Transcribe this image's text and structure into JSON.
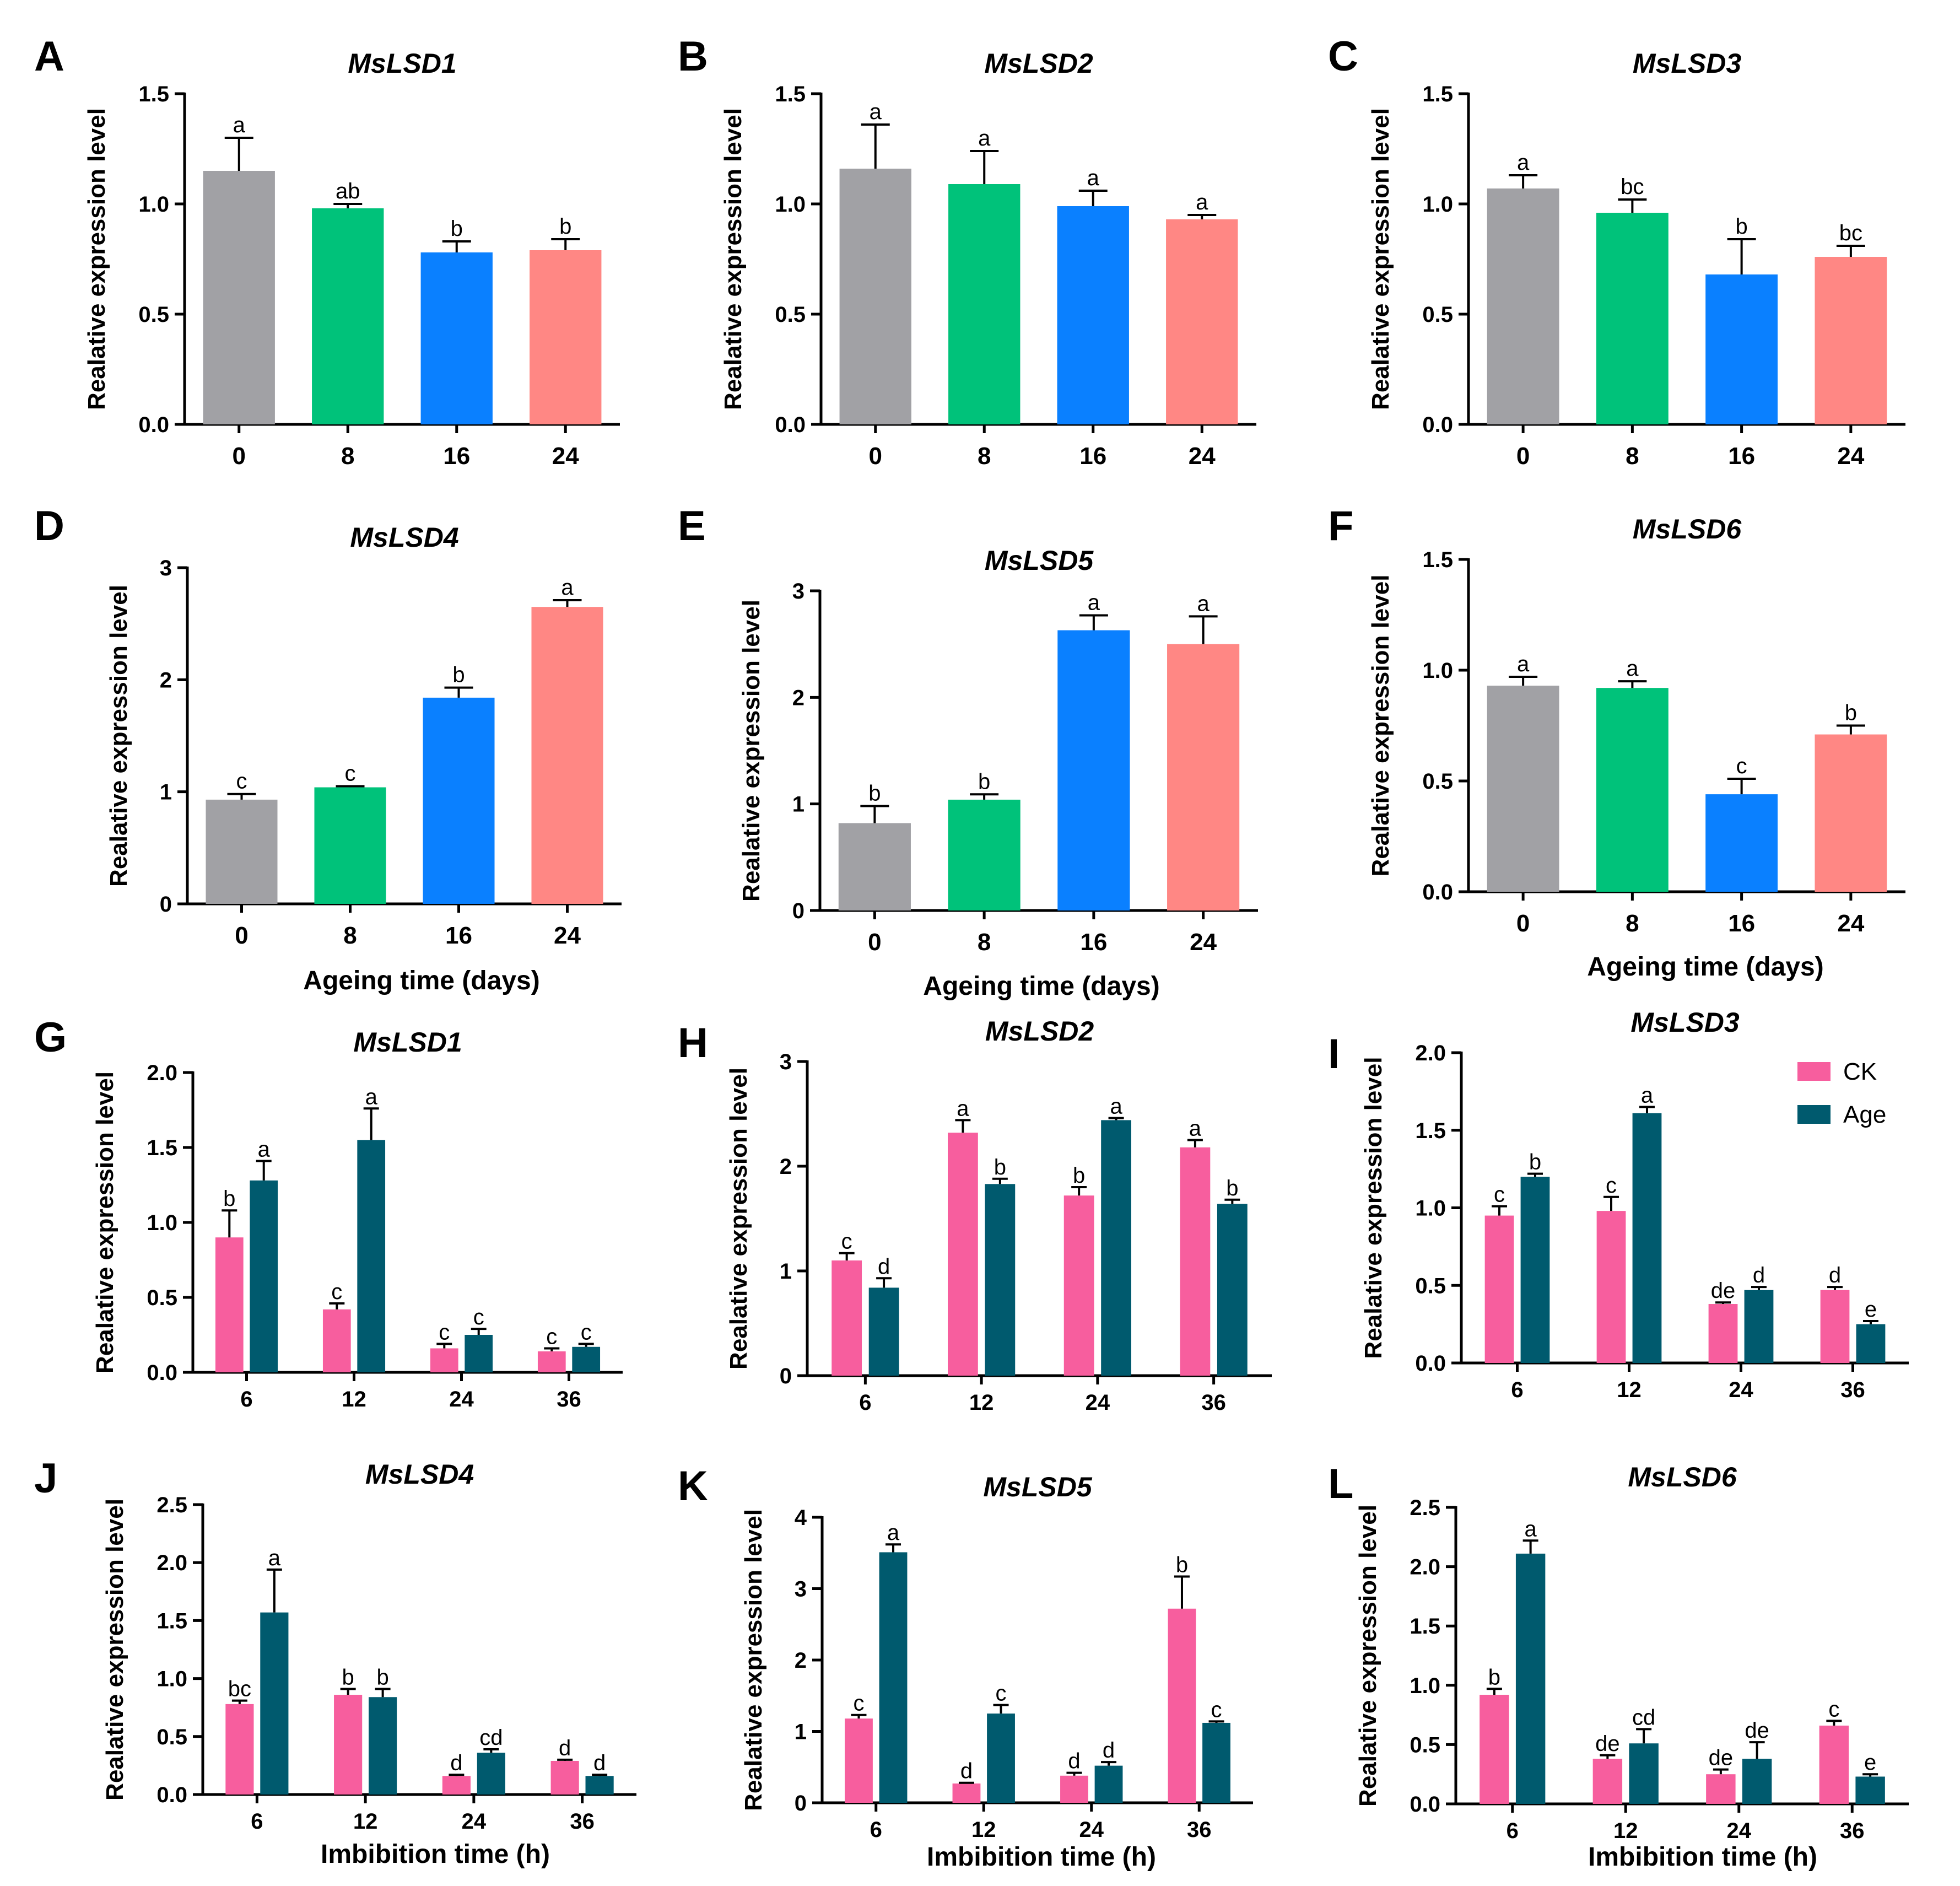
{
  "colors": {
    "age_0": "#a1a1a5",
    "age_8": "#00c27a",
    "age_16": "#0a80ff",
    "age_24": "#ff8784",
    "ck": "#f75e9e",
    "age": "#005a6e"
  },
  "legend": {
    "ck_label": "CK",
    "age_label": "Age"
  },
  "chart_data": [
    {
      "id": "A",
      "type": "bar",
      "title": "MsLSD1",
      "ylabel": "Realative expression level",
      "xlabel": "",
      "categories": [
        "0",
        "8",
        "16",
        "24"
      ],
      "values": [
        1.15,
        0.98,
        0.78,
        0.79
      ],
      "errors": [
        0.15,
        0.02,
        0.05,
        0.05
      ],
      "letters": [
        "a",
        "ab",
        "b",
        "b"
      ],
      "ylim": [
        0,
        1.5
      ],
      "yticks": [
        "0.0",
        "0.5",
        "1.0",
        "1.5"
      ]
    },
    {
      "id": "B",
      "type": "bar",
      "title": "MsLSD2",
      "ylabel": "Realative expression level",
      "xlabel": "",
      "categories": [
        "0",
        "8",
        "16",
        "24"
      ],
      "values": [
        1.16,
        1.09,
        0.99,
        0.93
      ],
      "errors": [
        0.2,
        0.15,
        0.07,
        0.02
      ],
      "letters": [
        "a",
        "a",
        "a",
        "a"
      ],
      "ylim": [
        0,
        1.5
      ],
      "yticks": [
        "0.0",
        "0.5",
        "1.0",
        "1.5"
      ]
    },
    {
      "id": "C",
      "type": "bar",
      "title": "MsLSD3",
      "ylabel": "Realative expression level",
      "xlabel": "",
      "categories": [
        "0",
        "8",
        "16",
        "24"
      ],
      "values": [
        1.07,
        0.96,
        0.68,
        0.76
      ],
      "errors": [
        0.06,
        0.06,
        0.16,
        0.05
      ],
      "letters": [
        "a",
        "bc",
        "b",
        "bc"
      ],
      "ylim": [
        0,
        1.5
      ],
      "yticks": [
        "0.0",
        "0.5",
        "1.0",
        "1.5"
      ]
    },
    {
      "id": "D",
      "type": "bar",
      "title": "MsLSD4",
      "ylabel": "Realative expression level",
      "xlabel": "Ageing time (days)",
      "categories": [
        "0",
        "8",
        "16",
        "24"
      ],
      "values": [
        0.93,
        1.04,
        1.84,
        2.65
      ],
      "errors": [
        0.05,
        0.01,
        0.09,
        0.06
      ],
      "letters": [
        "c",
        "c",
        "b",
        "a"
      ],
      "ylim": [
        0,
        3
      ],
      "yticks": [
        "0",
        "1",
        "2",
        "3"
      ]
    },
    {
      "id": "E",
      "type": "bar",
      "title": "MsLSD5",
      "ylabel": "Realative expression level",
      "xlabel": "Ageing time (days)",
      "categories": [
        "0",
        "8",
        "16",
        "24"
      ],
      "values": [
        0.82,
        1.04,
        2.63,
        2.5
      ],
      "errors": [
        0.16,
        0.05,
        0.14,
        0.26
      ],
      "letters": [
        "b",
        "b",
        "a",
        "a"
      ],
      "ylim": [
        0,
        3
      ],
      "yticks": [
        "0",
        "1",
        "2",
        "3"
      ]
    },
    {
      "id": "F",
      "type": "bar",
      "title": "MsLSD6",
      "ylabel": "Realative expression level",
      "xlabel": "Ageing time (days)",
      "categories": [
        "0",
        "8",
        "16",
        "24"
      ],
      "values": [
        0.93,
        0.92,
        0.44,
        0.71
      ],
      "errors": [
        0.04,
        0.03,
        0.07,
        0.04
      ],
      "letters": [
        "a",
        "a",
        "c",
        "b"
      ],
      "ylim": [
        0,
        1.5
      ],
      "yticks": [
        "0.0",
        "0.5",
        "1.0",
        "1.5"
      ]
    },
    {
      "id": "G",
      "type": "bar",
      "title": "MsLSD1",
      "ylabel": "Realative expression level",
      "xlabel": "",
      "categories": [
        "6",
        "12",
        "24",
        "36"
      ],
      "series": [
        {
          "name": "CK",
          "values": [
            0.9,
            0.42,
            0.16,
            0.14
          ],
          "errors": [
            0.18,
            0.04,
            0.03,
            0.02
          ],
          "letters": [
            "b",
            "c",
            "c",
            "c"
          ]
        },
        {
          "name": "Age",
          "values": [
            1.28,
            1.55,
            0.25,
            0.17
          ],
          "errors": [
            0.13,
            0.21,
            0.04,
            0.02
          ],
          "letters": [
            "a",
            "a",
            "c",
            "c"
          ]
        }
      ],
      "ylim": [
        0,
        2
      ],
      "yticks": [
        "0.0",
        "0.5",
        "1.0",
        "1.5",
        "2.0"
      ]
    },
    {
      "id": "H",
      "type": "bar",
      "title": "MsLSD2",
      "ylabel": "Realative expression level",
      "xlabel": "",
      "categories": [
        "6",
        "12",
        "24",
        "36"
      ],
      "series": [
        {
          "name": "CK",
          "values": [
            1.1,
            2.32,
            1.72,
            2.18
          ],
          "errors": [
            0.07,
            0.12,
            0.08,
            0.07
          ],
          "letters": [
            "c",
            "a",
            "b",
            "a"
          ]
        },
        {
          "name": "Age",
          "values": [
            0.84,
            1.83,
            2.44,
            1.64
          ],
          "errors": [
            0.09,
            0.05,
            0.02,
            0.04
          ],
          "letters": [
            "d",
            "b",
            "a",
            "b"
          ]
        }
      ],
      "ylim": [
        0,
        3
      ],
      "yticks": [
        "0",
        "1",
        "2",
        "3"
      ]
    },
    {
      "id": "I",
      "type": "bar",
      "title": "MsLSD3",
      "ylabel": "Realative expression level",
      "xlabel": "",
      "categories": [
        "6",
        "12",
        "24",
        "36"
      ],
      "series": [
        {
          "name": "CK",
          "values": [
            0.95,
            0.98,
            0.38,
            0.47
          ],
          "errors": [
            0.06,
            0.09,
            0.01,
            0.02
          ],
          "letters": [
            "c",
            "c",
            "de",
            "d"
          ]
        },
        {
          "name": "Age",
          "values": [
            1.2,
            1.61,
            0.47,
            0.25
          ],
          "errors": [
            0.02,
            0.04,
            0.02,
            0.02
          ],
          "letters": [
            "b",
            "a",
            "d",
            "e"
          ]
        }
      ],
      "ylim": [
        0,
        2
      ],
      "yticks": [
        "0.0",
        "0.5",
        "1.0",
        "1.5",
        "2.0"
      ]
    },
    {
      "id": "J",
      "type": "bar",
      "title": "MsLSD4",
      "ylabel": "Realative expression level",
      "xlabel": "Imbibition time (h)",
      "categories": [
        "6",
        "12",
        "24",
        "36"
      ],
      "series": [
        {
          "name": "CK",
          "values": [
            0.78,
            0.86,
            0.16,
            0.29
          ],
          "errors": [
            0.03,
            0.05,
            0.01,
            0.01
          ],
          "letters": [
            "bc",
            "b",
            "d",
            "d"
          ]
        },
        {
          "name": "Age",
          "values": [
            1.57,
            0.84,
            0.36,
            0.16
          ],
          "errors": [
            0.37,
            0.07,
            0.03,
            0.01
          ],
          "letters": [
            "a",
            "b",
            "cd",
            "d"
          ]
        }
      ],
      "ylim": [
        0,
        2.5
      ],
      "yticks": [
        "0.0",
        "0.5",
        "1.0",
        "1.5",
        "2.0",
        "2.5"
      ]
    },
    {
      "id": "K",
      "type": "bar",
      "title": "MsLSD5",
      "ylabel": "Realative expression level",
      "xlabel": "Imbibition time (h)",
      "categories": [
        "6",
        "12",
        "24",
        "36"
      ],
      "series": [
        {
          "name": "CK",
          "values": [
            1.18,
            0.27,
            0.38,
            2.72
          ],
          "errors": [
            0.05,
            0.01,
            0.04,
            0.45
          ],
          "letters": [
            "c",
            "d",
            "d",
            "b"
          ]
        },
        {
          "name": "Age",
          "values": [
            3.51,
            1.25,
            0.52,
            1.12
          ],
          "errors": [
            0.11,
            0.12,
            0.05,
            0.02
          ],
          "letters": [
            "a",
            "c",
            "d",
            "c"
          ]
        }
      ],
      "ylim": [
        0,
        4
      ],
      "yticks": [
        "0",
        "1",
        "2",
        "3",
        "4"
      ]
    },
    {
      "id": "L",
      "type": "bar",
      "title": "MsLSD6",
      "ylabel": "Realative expression level",
      "xlabel": "Imbibition time (h)",
      "categories": [
        "6",
        "12",
        "24",
        "36"
      ],
      "series": [
        {
          "name": "CK",
          "values": [
            0.92,
            0.38,
            0.25,
            0.66
          ],
          "errors": [
            0.05,
            0.03,
            0.04,
            0.04
          ],
          "letters": [
            "b",
            "de",
            "de",
            "c"
          ]
        },
        {
          "name": "Age",
          "values": [
            2.11,
            0.51,
            0.38,
            0.23
          ],
          "errors": [
            0.11,
            0.12,
            0.14,
            0.02
          ],
          "letters": [
            "a",
            "cd",
            "de",
            "e"
          ]
        }
      ],
      "ylim": [
        0,
        2.5
      ],
      "yticks": [
        "0.0",
        "0.5",
        "1.0",
        "1.5",
        "2.0",
        "2.5"
      ]
    }
  ]
}
